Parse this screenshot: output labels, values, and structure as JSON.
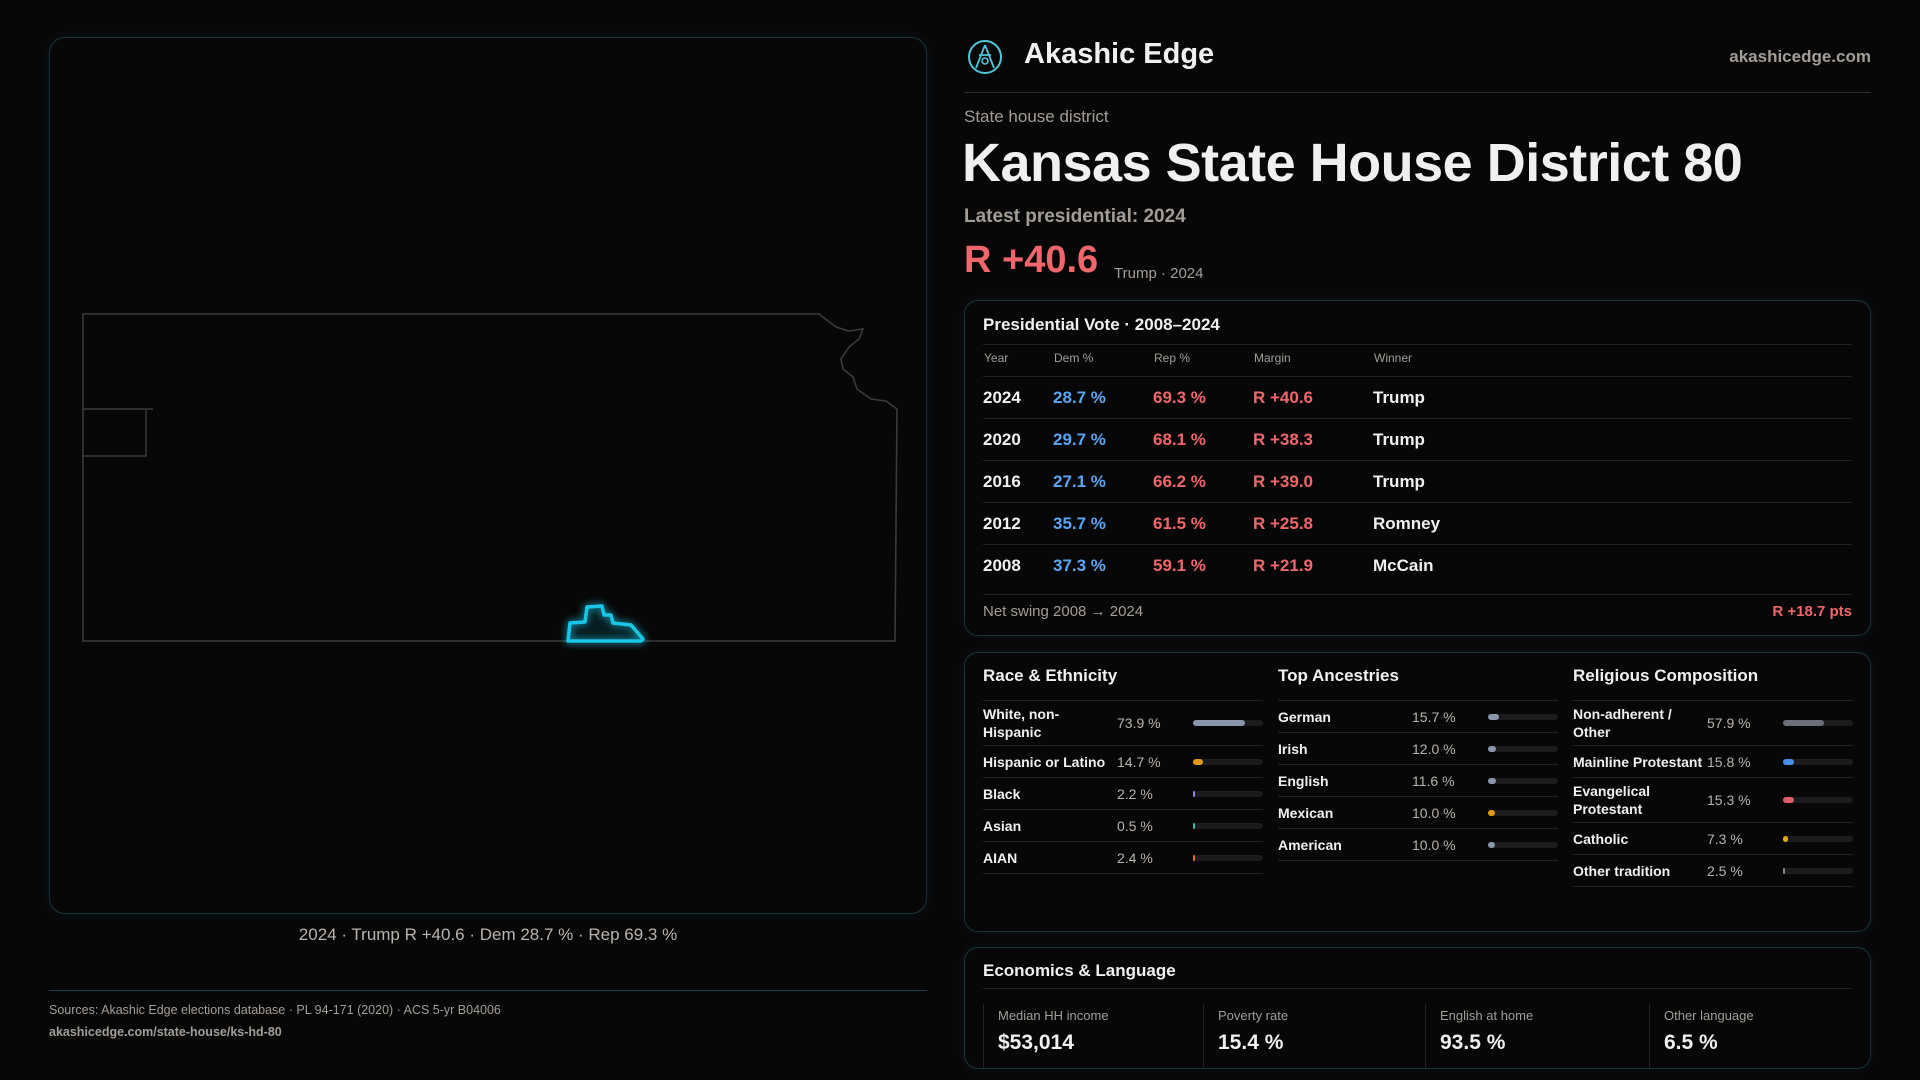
{
  "brand": {
    "name": "Akashic Edge",
    "domain": "akashicedge.com"
  },
  "header": {
    "kicker": "State house district",
    "title": "Kansas State House District 80",
    "latest_label": "Latest presidential: 2024",
    "margin": "R +40.6",
    "margin_sub": "Trump · 2024"
  },
  "map": {
    "caption": "2024 · Trump R +40.6 · Dem 28.7 % · Rep 69.3 %",
    "highlight_color": "#19c6e6"
  },
  "presidential": {
    "title": "Presidential Vote · 2008–2024",
    "headers": [
      "Year",
      "Dem %",
      "Rep %",
      "Margin",
      "Winner"
    ],
    "rows": [
      {
        "year": "2024",
        "dem": "28.7 %",
        "rep": "69.3 %",
        "margin": "R +40.6",
        "winner": "Trump"
      },
      {
        "year": "2020",
        "dem": "29.7 %",
        "rep": "68.1 %",
        "margin": "R +38.3",
        "winner": "Trump"
      },
      {
        "year": "2016",
        "dem": "27.1 %",
        "rep": "66.2 %",
        "margin": "R +39.0",
        "winner": "Trump"
      },
      {
        "year": "2012",
        "dem": "35.7 %",
        "rep": "61.5 %",
        "margin": "R +25.8",
        "winner": "Romney"
      },
      {
        "year": "2008",
        "dem": "37.3 %",
        "rep": "59.1 %",
        "margin": "R +21.9",
        "winner": "McCain"
      }
    ],
    "swing_label": "Net swing 2008 → 2024",
    "swing_value": "R +18.7 pts"
  },
  "race": {
    "title": "Race & Ethnicity",
    "items": [
      {
        "label": "White, non-Hispanic",
        "value": "73.9 %",
        "pct": 73.9,
        "color": "#8a96aa"
      },
      {
        "label": "Hispanic or Latino",
        "value": "14.7 %",
        "pct": 14.7,
        "color": "#e09a12"
      },
      {
        "label": "Black",
        "value": "2.2 %",
        "pct": 2.2,
        "color": "#9a7ef0"
      },
      {
        "label": "Asian",
        "value": "0.5 %",
        "pct": 0.5,
        "color": "#2cc4a0"
      },
      {
        "label": "AIAN",
        "value": "2.4 %",
        "pct": 2.4,
        "color": "#e0780e"
      }
    ]
  },
  "ancestry": {
    "title": "Top Ancestries",
    "items": [
      {
        "label": "German",
        "value": "15.7 %",
        "pct": 15.7,
        "color": "#8a96aa"
      },
      {
        "label": "Irish",
        "value": "12.0 %",
        "pct": 12.0,
        "color": "#8a96aa"
      },
      {
        "label": "English",
        "value": "11.6 %",
        "pct": 11.6,
        "color": "#8a96aa"
      },
      {
        "label": "Mexican",
        "value": "10.0 %",
        "pct": 10.0,
        "color": "#e09a12"
      },
      {
        "label": "American",
        "value": "10.0 %",
        "pct": 10.0,
        "color": "#8a96aa"
      }
    ]
  },
  "religion": {
    "title": "Religious Composition",
    "items": [
      {
        "label": "Non-adherent / Other",
        "value": "57.9 %",
        "pct": 57.9,
        "color": "#6c6f78"
      },
      {
        "label": "Mainline Protestant",
        "value": "15.8 %",
        "pct": 15.8,
        "color": "#4a8ee8"
      },
      {
        "label": "Evangelical Protestant",
        "value": "15.3 %",
        "pct": 15.3,
        "color": "#e06068"
      },
      {
        "label": "Catholic",
        "value": "7.3 %",
        "pct": 7.3,
        "color": "#e0a81a"
      },
      {
        "label": "Other tradition",
        "value": "2.5 %",
        "pct": 2.5,
        "color": "#8a8a90"
      }
    ]
  },
  "economics": {
    "title": "Economics & Language",
    "items": [
      {
        "label": "Median HH income",
        "value": "$53,014"
      },
      {
        "label": "Poverty rate",
        "value": "15.4 %"
      },
      {
        "label": "English at home",
        "value": "93.5 %"
      },
      {
        "label": "Other language",
        "value": "6.5 %"
      }
    ]
  },
  "footer": {
    "sources": "Sources: Akashic Edge elections database · PL 94-171 (2020) · ACS 5-yr B04006",
    "url": "akashicedge.com/state-house/ks-hd-80"
  }
}
